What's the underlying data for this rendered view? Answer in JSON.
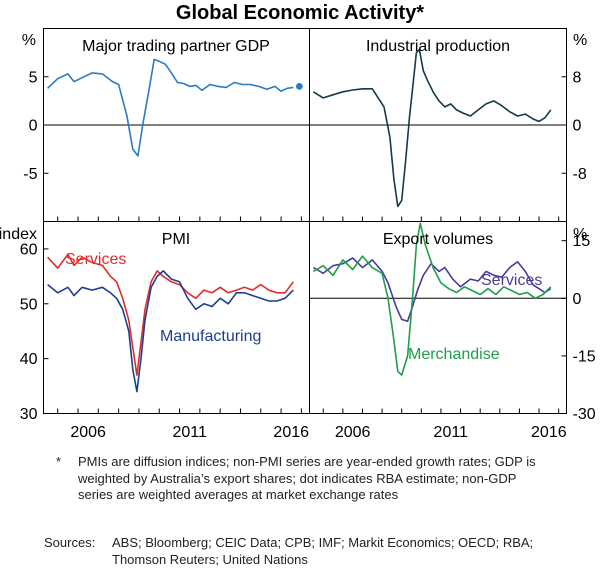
{
  "title": "Global Economic Activity*",
  "colors": {
    "blue": "#2b7bc4",
    "dark_teal": "#123a4a",
    "red": "#e02c2c",
    "navy": "#1f3e8f",
    "purple": "#4b3a9e",
    "green": "#1e9e48",
    "axis": "#000000",
    "grid": "#9a9a9a"
  },
  "x_axis": {
    "range": [
      2004.3,
      2017.4
    ],
    "ticks": [
      "2006",
      "2011",
      "2016",
      "2006",
      "2011",
      "2016"
    ]
  },
  "chart_data": [
    {
      "type": "line",
      "panel": "top-left",
      "title": "Major trading partner GDP",
      "ylabel": "%",
      "ylim": [
        -10,
        10
      ],
      "yticks": [
        "5",
        "0",
        "-5"
      ],
      "series": [
        {
          "name": "Major trading partner GDP",
          "color": "#2b7bc4",
          "x": [
            2004.5,
            2005.0,
            2005.5,
            2005.8,
            2006.2,
            2006.7,
            2007.2,
            2007.7,
            2008.0,
            2008.4,
            2008.7,
            2008.95,
            2009.2,
            2009.5,
            2009.75,
            2010.0,
            2010.3,
            2010.6,
            2010.9,
            2011.2,
            2011.5,
            2011.8,
            2012.1,
            2012.5,
            2012.9,
            2013.3,
            2013.7,
            2014.1,
            2014.5,
            2014.9,
            2015.3,
            2015.7,
            2016.0,
            2016.3,
            2016.6
          ],
          "values": [
            3.8,
            4.8,
            5.3,
            4.5,
            4.9,
            5.4,
            5.3,
            4.5,
            4.2,
            1.0,
            -2.5,
            -3.2,
            0.2,
            3.7,
            6.8,
            6.6,
            6.3,
            5.4,
            4.4,
            4.3,
            4.0,
            4.1,
            3.6,
            4.2,
            4.0,
            3.9,
            4.4,
            4.2,
            4.2,
            4.0,
            3.7,
            4.0,
            3.5,
            3.8,
            3.9
          ]
        }
      ],
      "annotations": [
        {
          "label": "RBA estimate",
          "x": 2016.9,
          "y": 4.0
        }
      ]
    },
    {
      "type": "line",
      "panel": "top-right",
      "title": "Industrial production",
      "ylabel": "%",
      "ylim": [
        -16,
        16
      ],
      "yticks": [
        "8",
        "0",
        "-8"
      ],
      "series": [
        {
          "name": "Industrial production",
          "color": "#123a4a",
          "x": [
            2004.5,
            2005.0,
            2005.5,
            2006.0,
            2006.5,
            2007.0,
            2007.5,
            2007.8,
            2008.1,
            2008.4,
            2008.6,
            2008.8,
            2009.0,
            2009.2,
            2009.4,
            2009.6,
            2009.75,
            2009.9,
            2010.1,
            2010.3,
            2010.6,
            2010.9,
            2011.2,
            2011.5,
            2011.8,
            2012.1,
            2012.5,
            2012.9,
            2013.3,
            2013.7,
            2014.1,
            2014.5,
            2014.9,
            2015.3,
            2015.7,
            2016.0,
            2016.3,
            2016.6
          ],
          "values": [
            5.5,
            4.5,
            5.0,
            5.5,
            5.8,
            6.0,
            6.0,
            4.5,
            3.0,
            -2.0,
            -9.0,
            -13.5,
            -12.5,
            -6.0,
            1.5,
            7.5,
            12.0,
            12.5,
            9.0,
            7.5,
            5.5,
            4.0,
            3.0,
            3.5,
            2.5,
            2.0,
            1.5,
            2.5,
            3.5,
            4.0,
            3.2,
            2.2,
            1.5,
            1.8,
            1.0,
            0.6,
            1.2,
            2.5
          ]
        }
      ]
    },
    {
      "type": "line",
      "panel": "bottom-left",
      "title": "PMI",
      "ylabel": "index",
      "ylim": [
        30,
        65
      ],
      "yticks": [
        "60",
        "50",
        "40",
        "30"
      ],
      "series": [
        {
          "name": "Services",
          "color": "#e02c2c",
          "x": [
            2004.5,
            2005.0,
            2005.5,
            2005.8,
            2006.2,
            2006.7,
            2007.2,
            2007.6,
            2007.9,
            2008.2,
            2008.5,
            2008.7,
            2008.9,
            2009.1,
            2009.3,
            2009.6,
            2009.9,
            2010.2,
            2010.6,
            2011.0,
            2011.4,
            2011.8,
            2012.2,
            2012.6,
            2013.0,
            2013.4,
            2013.8,
            2014.2,
            2014.6,
            2015.0,
            2015.4,
            2015.8,
            2016.2,
            2016.6
          ],
          "values": [
            58.5,
            56.5,
            59.0,
            57.0,
            58.5,
            57.5,
            57.0,
            55.0,
            54.0,
            51.0,
            47.0,
            42.0,
            37.0,
            43.0,
            49.0,
            54.0,
            56.0,
            55.0,
            54.0,
            53.5,
            52.0,
            51.0,
            52.5,
            52.0,
            53.0,
            52.0,
            52.5,
            53.0,
            52.5,
            53.5,
            52.5,
            52.0,
            52.0,
            54.0
          ]
        },
        {
          "name": "Manufacturing",
          "color": "#1f3e8f",
          "x": [
            2004.5,
            2005.0,
            2005.5,
            2005.8,
            2006.2,
            2006.7,
            2007.2,
            2007.6,
            2007.9,
            2008.2,
            2008.5,
            2008.7,
            2008.9,
            2009.1,
            2009.3,
            2009.6,
            2009.9,
            2010.2,
            2010.6,
            2011.0,
            2011.4,
            2011.8,
            2012.2,
            2012.6,
            2013.0,
            2013.4,
            2013.8,
            2014.2,
            2014.6,
            2015.0,
            2015.4,
            2015.8,
            2016.2,
            2016.6
          ],
          "values": [
            53.5,
            52.0,
            53.0,
            51.5,
            53.0,
            52.5,
            53.0,
            52.0,
            51.0,
            49.0,
            45.0,
            38.0,
            34.0,
            40.0,
            47.0,
            53.0,
            55.0,
            56.0,
            54.5,
            54.0,
            51.0,
            49.0,
            50.0,
            49.5,
            51.0,
            50.0,
            52.0,
            52.0,
            51.5,
            51.0,
            50.5,
            50.5,
            51.0,
            52.5
          ]
        }
      ]
    },
    {
      "type": "line",
      "panel": "bottom-right",
      "title": "Export volumes",
      "ylabel": "%",
      "ylim": [
        -30,
        20
      ],
      "yticks": [
        "15",
        "0",
        "-15",
        "-30"
      ],
      "series": [
        {
          "name": "Services",
          "color": "#4b3a9e",
          "x": [
            2004.5,
            2005.0,
            2005.5,
            2006.0,
            2006.5,
            2007.0,
            2007.5,
            2008.0,
            2008.3,
            2008.7,
            2009.0,
            2009.3,
            2009.5,
            2009.8,
            2010.1,
            2010.5,
            2010.9,
            2011.2,
            2011.6,
            2012.0,
            2012.5,
            2012.9,
            2013.3,
            2013.7,
            2014.1,
            2014.5,
            2014.9,
            2015.3,
            2015.7,
            2016.0,
            2016.3,
            2016.6
          ],
          "values": [
            8.0,
            6.5,
            8.5,
            9.0,
            10.5,
            8.0,
            10.0,
            7.0,
            4.0,
            -2.0,
            -5.5,
            -6.0,
            -3.0,
            2.0,
            6.0,
            9.0,
            7.0,
            8.0,
            5.0,
            3.0,
            5.0,
            4.5,
            7.0,
            6.0,
            5.5,
            8.0,
            9.5,
            7.0,
            3.5,
            2.5,
            1.5,
            2.5
          ]
        },
        {
          "name": "Merchandise",
          "color": "#1e9e48",
          "x": [
            2004.5,
            2005.0,
            2005.5,
            2006.0,
            2006.5,
            2007.0,
            2007.5,
            2008.0,
            2008.3,
            2008.55,
            2008.8,
            2009.0,
            2009.3,
            2009.55,
            2009.75,
            2009.95,
            2010.2,
            2010.6,
            2011.0,
            2011.4,
            2011.8,
            2012.2,
            2012.6,
            2013.0,
            2013.4,
            2013.8,
            2014.2,
            2014.6,
            2015.0,
            2015.4,
            2015.8,
            2016.2,
            2016.6
          ],
          "values": [
            7.0,
            8.5,
            6.0,
            10.0,
            7.5,
            11.0,
            8.0,
            6.5,
            0.0,
            -9.0,
            -19.0,
            -20.0,
            -15.0,
            0.0,
            14.0,
            19.5,
            14.0,
            8.0,
            4.0,
            2.5,
            1.5,
            3.0,
            2.0,
            1.0,
            2.5,
            1.0,
            3.0,
            2.0,
            1.0,
            1.5,
            0.0,
            1.0,
            3.0
          ]
        }
      ]
    }
  ],
  "labels": {
    "services_pmi": "Services",
    "manufacturing": "Manufacturing",
    "services_exports": "Services",
    "merchandise": "Merchandise"
  },
  "notes": {
    "mark": "*",
    "footnote": "PMIs are diffusion indices; non-PMI series are year-ended growth rates; GDP is weighted by Australia’s export shares; dot indicates RBA estimate; non-GDP series are weighted averages at market exchange rates",
    "sources_label": "Sources:",
    "sources": "ABS; Bloomberg; CEIC Data; CPB; IMF; Markit Economics; OECD; RBA; Thomson Reuters; United Nations"
  }
}
